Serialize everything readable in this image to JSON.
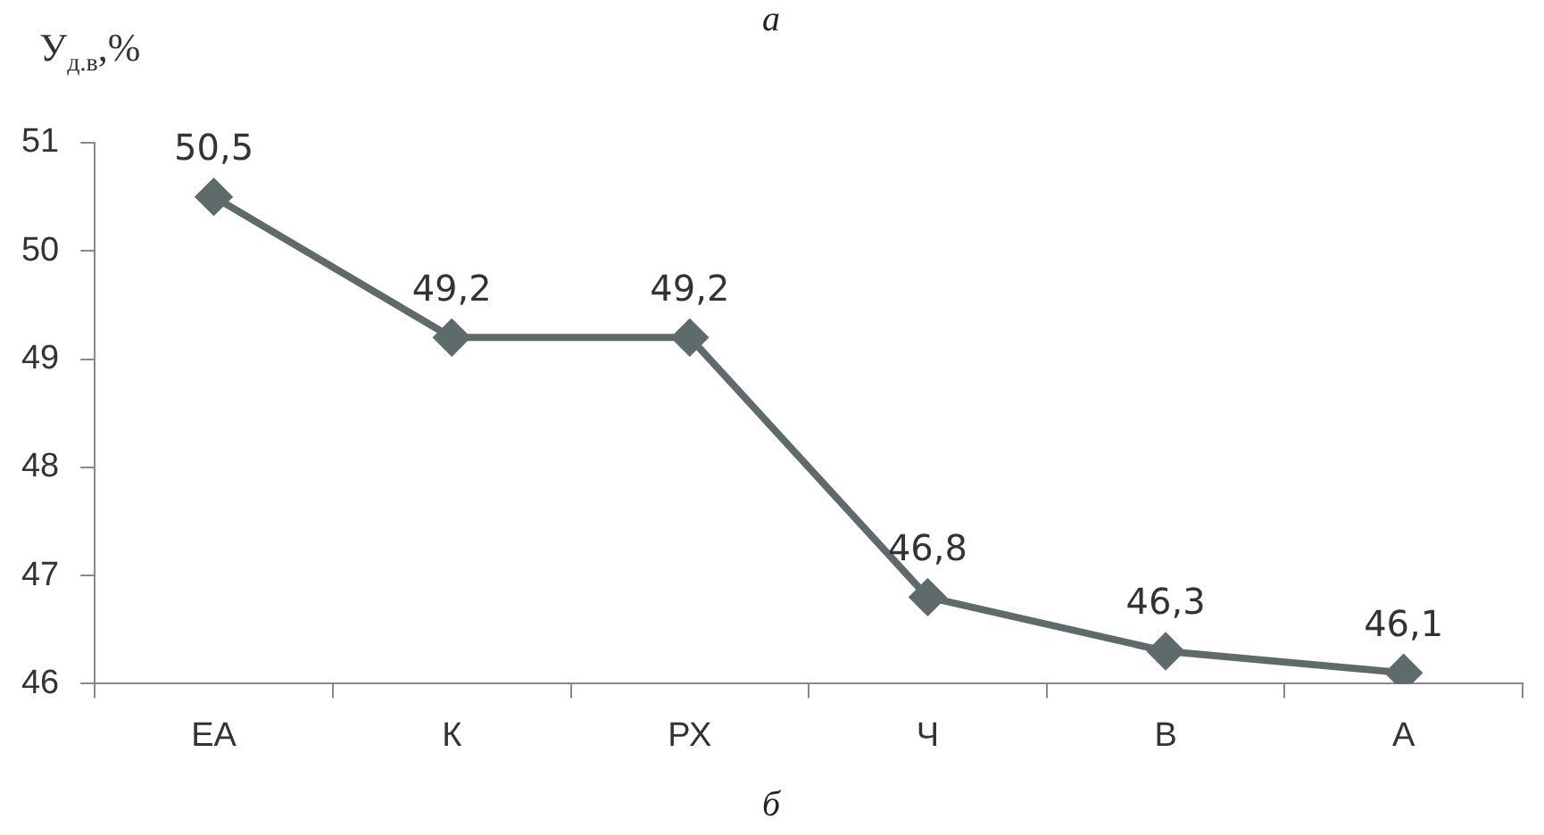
{
  "chart_data": {
    "type": "line",
    "ylabel": "У$_{д.в}$,%",
    "categories": [
      "ЕА",
      "К",
      "РХ",
      "Ч",
      "В",
      "А"
    ],
    "series": [
      {
        "color": "#5f6b6a",
        "values": [
          50.5,
          49.2,
          49.2,
          46.8,
          46.3,
          46.1
        ],
        "value_labels": [
          "50,5",
          "49,2",
          "49,2",
          "46,8",
          "46,3",
          "46,1"
        ]
      }
    ],
    "ylim": [
      46,
      51
    ],
    "yticks": [
      46,
      47,
      48,
      49,
      50,
      51
    ],
    "grid": false,
    "legend": false,
    "marker": "diamond",
    "line_style": "solid",
    "annotations": [
      "а",
      "б"
    ]
  }
}
